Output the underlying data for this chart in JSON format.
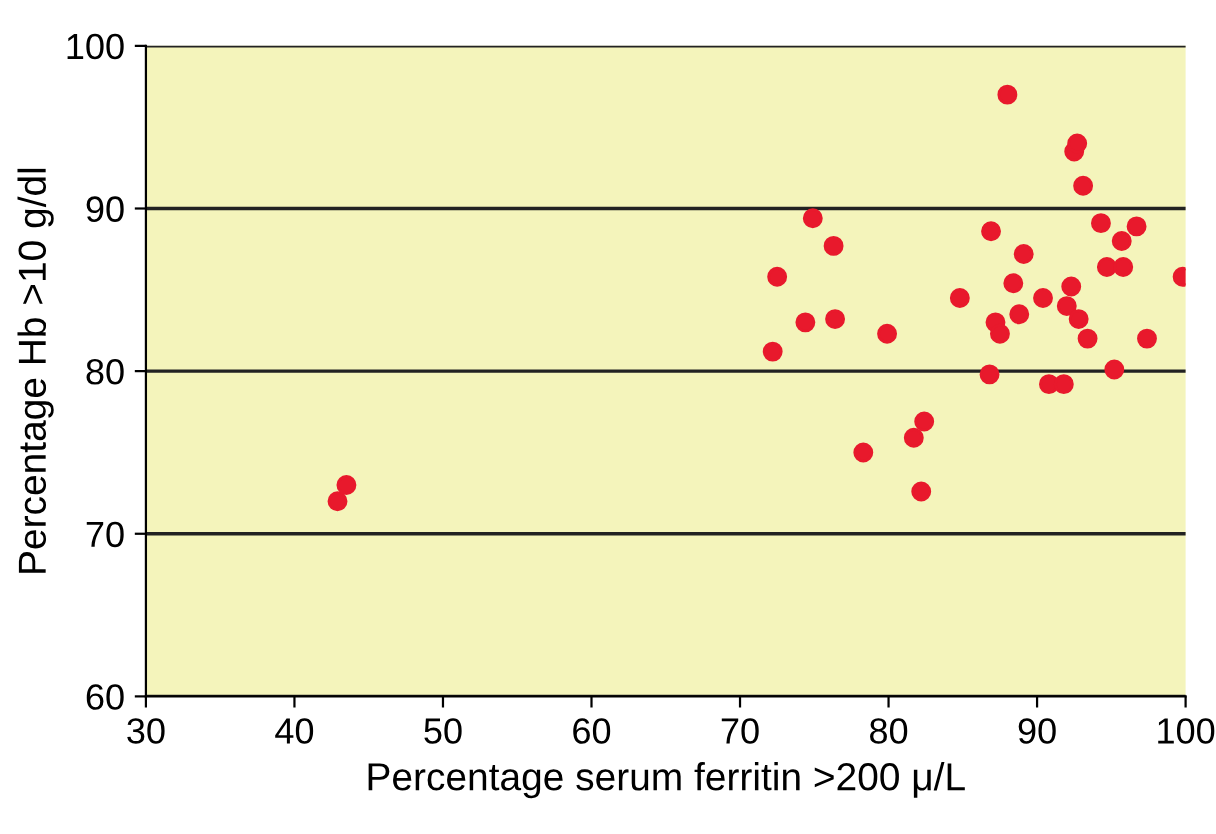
{
  "chart_data": {
    "type": "scatter",
    "xlabel": "Percentage serum ferritin >200 μ/L",
    "ylabel": "Percentage Hb >10 g/dl",
    "xlim": [
      30,
      100
    ],
    "ylim": [
      60,
      100
    ],
    "xticks": [
      30,
      40,
      50,
      60,
      70,
      80,
      90,
      100
    ],
    "yticks": [
      60,
      70,
      80,
      90,
      100
    ],
    "grid": "y",
    "marker": "circle",
    "series": [
      {
        "color": "#e8192c",
        "x": [
          42.9,
          43.5,
          72.2,
          72.5,
          74.4,
          74.9,
          76.3,
          76.4,
          78.3,
          79.9,
          81.7,
          82.2,
          82.4,
          84.8,
          86.8,
          86.9,
          87.2,
          87.5,
          88.0,
          88.4,
          88.8,
          89.1,
          90.4,
          90.8,
          91.8,
          92.0,
          92.3,
          92.5,
          92.7,
          92.8,
          93.1,
          93.4,
          94.3,
          94.7,
          95.2,
          95.7,
          95.8,
          96.7,
          97.4,
          99.8
        ],
        "values": [
          72.0,
          73.0,
          81.2,
          85.8,
          83.0,
          89.4,
          87.7,
          83.2,
          75.0,
          82.3,
          75.9,
          72.6,
          76.9,
          84.5,
          79.8,
          88.6,
          83.0,
          82.3,
          97.0,
          85.4,
          83.5,
          87.2,
          84.5,
          79.2,
          79.2,
          84.0,
          85.2,
          93.5,
          94.0,
          83.2,
          91.4,
          82.0,
          89.1,
          86.4,
          80.1,
          88.0,
          86.4,
          88.9,
          82.0,
          85.8
        ]
      }
    ]
  }
}
